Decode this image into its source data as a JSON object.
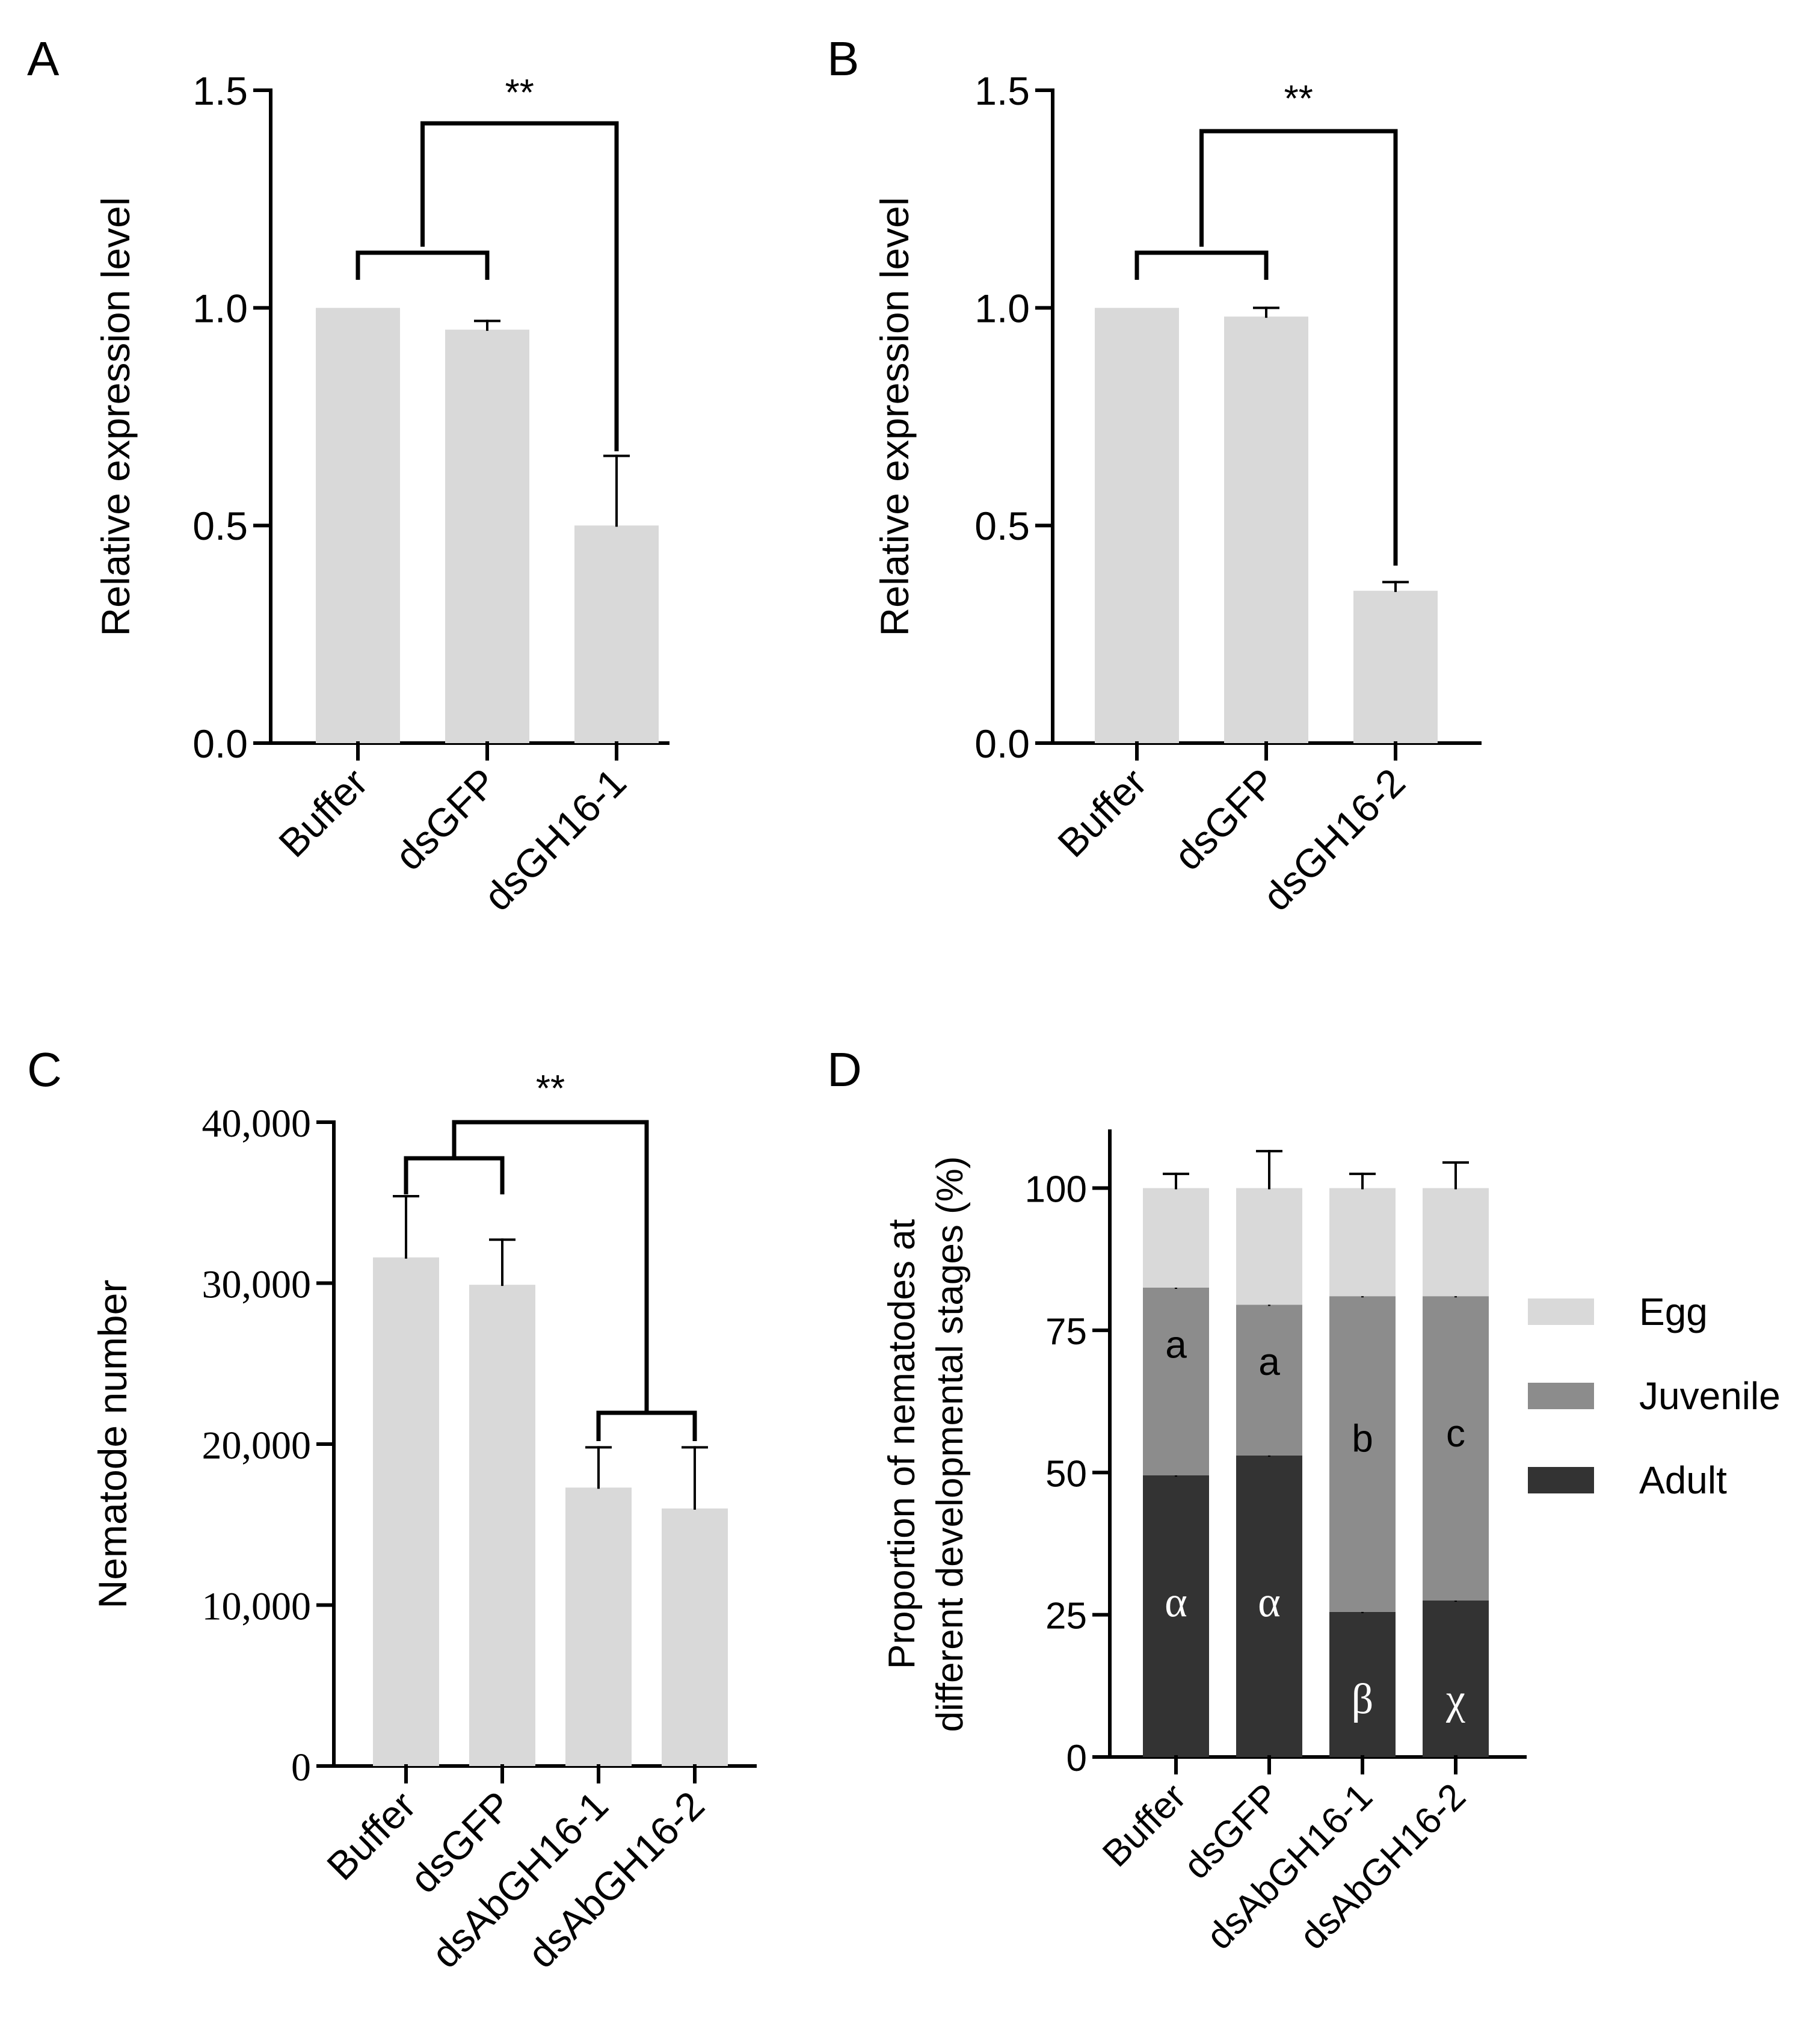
{
  "colors": {
    "bar": "#d9d9d9",
    "egg": "#d9d9d9",
    "juvenile": "#8c8c8c",
    "adult": "#333333",
    "axis": "#000000",
    "inside_text_light": "#ffffff",
    "inside_text_dark": "#000000"
  },
  "chart_data": [
    {
      "panel_label": "A",
      "type": "bar",
      "ylabel": "Relative expression level",
      "categories": [
        "Buffer",
        "dsGFP",
        "dsGH16-1"
      ],
      "values": [
        1.0,
        0.95,
        0.5
      ],
      "errors": [
        0,
        0.02,
        0.16
      ],
      "ylim": [
        0,
        1.5
      ],
      "yticks": [
        0,
        0.5,
        1.0,
        1.5
      ],
      "ytick_labels": [
        "0.0",
        "0.5",
        "1.0",
        "1.5"
      ],
      "significance": "**"
    },
    {
      "panel_label": "B",
      "type": "bar",
      "ylabel": "Relative expression level",
      "categories": [
        "Buffer",
        "dsGFP",
        "dsGH16-2"
      ],
      "values": [
        1.0,
        0.98,
        0.35
      ],
      "errors": [
        0,
        0.02,
        0.02
      ],
      "ylim": [
        0,
        1.5
      ],
      "yticks": [
        0,
        0.5,
        1.0,
        1.5
      ],
      "ytick_labels": [
        "0.0",
        "0.5",
        "1.0",
        "1.5"
      ],
      "significance": "**"
    },
    {
      "panel_label": "C",
      "type": "bar",
      "ylabel": "Nematode number",
      "categories": [
        "Buffer",
        "dsGFP",
        "dsAbGH16-1",
        "dsAbGH16-2"
      ],
      "values": [
        31600,
        29900,
        17300,
        16000
      ],
      "errors": [
        3800,
        2800,
        2500,
        3800
      ],
      "ylim": [
        0,
        40000
      ],
      "yticks": [
        0,
        10000,
        20000,
        30000,
        40000
      ],
      "ytick_labels": [
        "0",
        "10,000",
        "20,000",
        "30,000",
        "40,000"
      ],
      "significance": "**"
    },
    {
      "panel_label": "D",
      "type": "bar",
      "stacked": true,
      "ylabel_lines": [
        "Proportion of nematodes at",
        "different developmental stages (%)"
      ],
      "categories": [
        "Buffer",
        "dsGFP",
        "dsAbGH16-1",
        "dsAbGH16-2"
      ],
      "ylim": [
        0,
        110
      ],
      "yticks": [
        0,
        25,
        50,
        75,
        100
      ],
      "ytick_labels": [
        "0",
        "25",
        "50",
        "75",
        "100"
      ],
      "series": [
        {
          "name": "Adult",
          "values": [
            49.5,
            53,
            25.5,
            27.5
          ],
          "errors": [
            6,
            7,
            6,
            4
          ],
          "letters": [
            "α",
            "α",
            "β",
            "χ"
          ]
        },
        {
          "name": "Juvenile",
          "values": [
            33,
            26.5,
            55.5,
            53.5
          ],
          "errors": [
            3.5,
            7.5,
            8,
            3.5
          ],
          "letters": [
            "a",
            "a",
            "b",
            "c"
          ]
        },
        {
          "name": "Egg",
          "values": [
            17.5,
            20.5,
            19,
            19
          ],
          "errors": [
            2.5,
            6.5,
            2.5,
            4.5
          ],
          "letters": []
        }
      ],
      "legend": [
        "Egg",
        "Juvenile",
        "Adult"
      ],
      "legend_position": "right"
    }
  ]
}
